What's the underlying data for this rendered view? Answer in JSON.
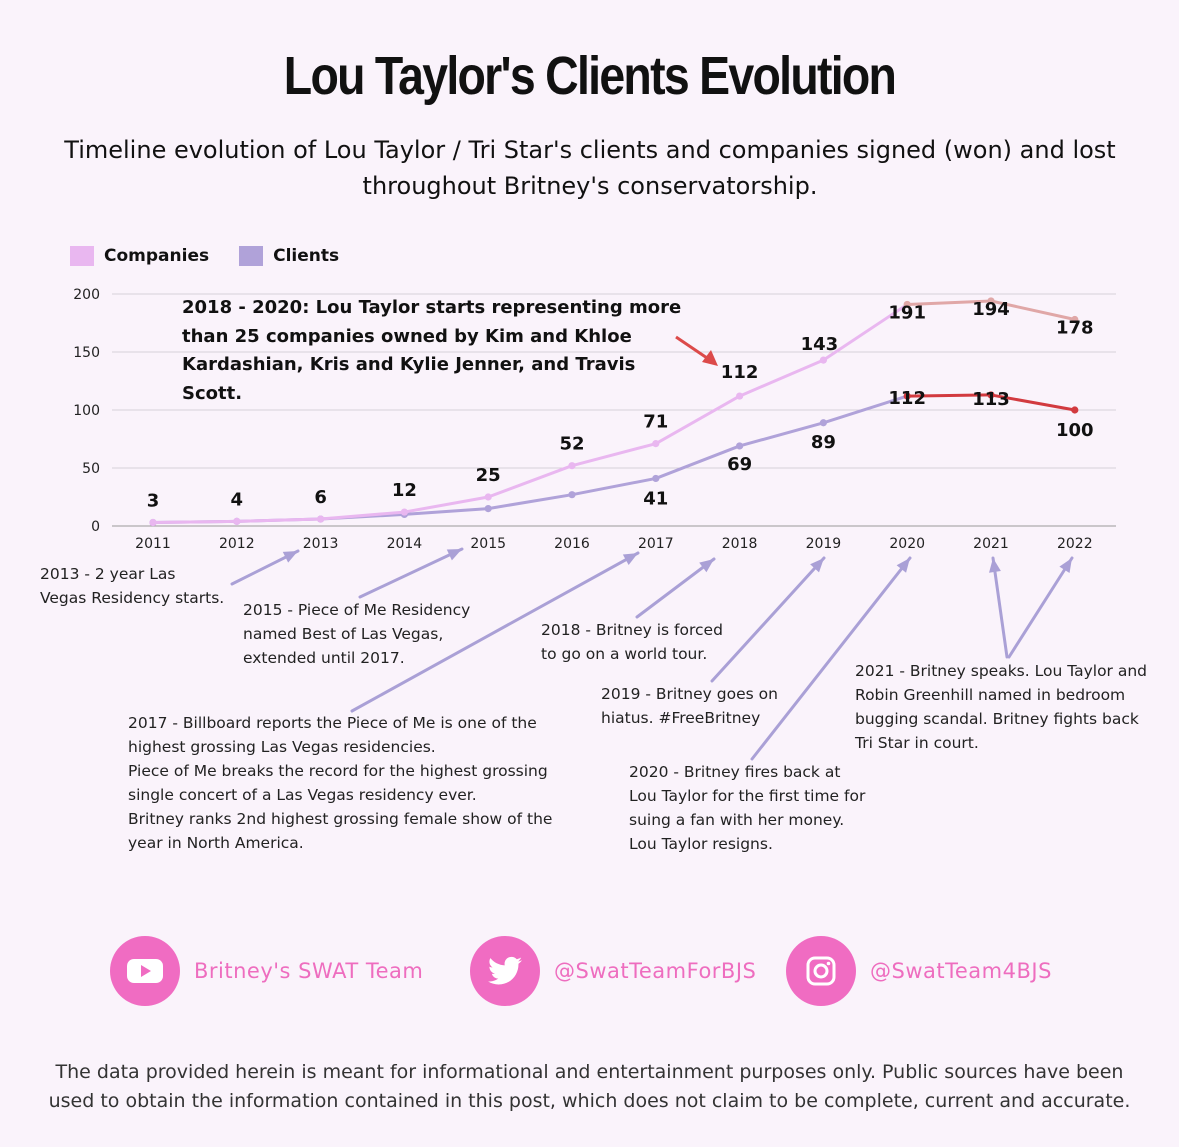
{
  "header": {
    "title": "Lou Taylor's Clients Evolution",
    "subtitle": "Timeline evolution of Lou Taylor / Tri Star's clients and companies signed (won) and lost throughout Britney's conservatorship."
  },
  "colors": {
    "companies": "#e9b7f0",
    "companies_lost": "#e0a7a7",
    "clients": "#b0a2d9",
    "clients_lost": "#d23a3f",
    "arrow": "#aaa0d6",
    "callout_arrow": "#dc4a4a",
    "social": "#f06cc2"
  },
  "chart_data": {
    "type": "line",
    "categories": [
      "2011",
      "2012",
      "2013",
      "2014",
      "2015",
      "2016",
      "2017",
      "2018",
      "2019",
      "2020",
      "2021",
      "2022"
    ],
    "ylim": [
      0,
      200
    ],
    "yticks": [
      "0",
      "50",
      "100",
      "150",
      "200"
    ],
    "grid": true,
    "legend_position": "top-left",
    "series": [
      {
        "name": "Companies",
        "values": [
          3,
          4,
          6,
          12,
          25,
          52,
          71,
          112,
          143,
          191,
          194,
          178
        ]
      },
      {
        "name": "Clients",
        "values": [
          3,
          4,
          6,
          10,
          15,
          27,
          41,
          69,
          89,
          112,
          113,
          100
        ]
      }
    ],
    "legend": [
      "Companies",
      "Clients"
    ],
    "data_labels": [
      "3",
      "4",
      "6",
      "12",
      "25",
      "52",
      "71",
      "112",
      "143",
      "191",
      "194",
      "178",
      "41",
      "69",
      "89",
      "112",
      "113",
      "100"
    ],
    "callout": "2018 - 2020: Lou Taylor starts representing more than 25 companies owned by Kim and Khloe Kardashian, Kris and Kylie Jenner, and Travis Scott."
  },
  "annotations": [
    "2013 - 2 year Las\nVegas Residency starts.",
    "2015 - Piece of Me Residency\nnamed Best of Las Vegas,\nextended until 2017.",
    "2017 - Billboard reports the Piece of Me is one of the\nhighest grossing Las Vegas residencies.\nPiece of Me breaks the record for the highest grossing\nsingle concert of a Las Vegas residency ever.\nBritney ranks 2nd highest grossing female show of the\nyear in North America.",
    "2018 - Britney is forced\nto go on a world tour.",
    "2019 - Britney goes on\nhiatus. #FreeBritney",
    "2020 - Britney fires back at\nLou Taylor for the first time for\nsuing a fan with her money.\nLou Taylor resigns.",
    "2021 - Britney speaks. Lou Taylor and\nRobin Greenhill named in bedroom\nbugging scandal. Britney fights back\nTri Star in court."
  ],
  "social": [
    {
      "icon": "youtube-icon",
      "label": "Britney's SWAT Team"
    },
    {
      "icon": "twitter-icon",
      "label": "@SwatTeamForBJS"
    },
    {
      "icon": "instagram-icon",
      "label": "@SwatTeam4BJS"
    }
  ],
  "disclaimer": "The data provided herein is meant for informational and entertainment purposes only. Public sources have been used to obtain the information contained in this post, which does not claim to be complete, current and accurate."
}
